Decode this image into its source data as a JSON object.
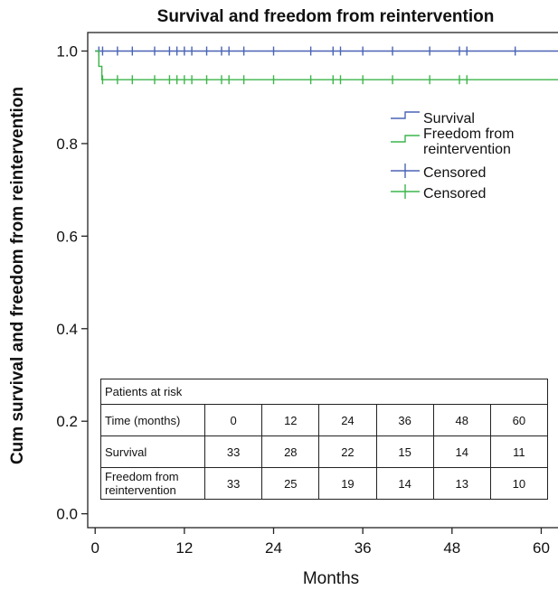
{
  "chart_data": {
    "type": "line",
    "step": true,
    "title": "Survival and freedom from reintervention",
    "xlabel": "Months",
    "ylabel": "Cum survival and freedom from reintervention",
    "xlim": [
      -1,
      62.5
    ],
    "ylim": [
      -0.03,
      1.04
    ],
    "x_ticks": [
      "0",
      "12",
      "24",
      "36",
      "48",
      "60"
    ],
    "y_ticks": [
      "0.0",
      "0.2",
      "0.4",
      "0.6",
      "0.8",
      "1.0"
    ],
    "grid": false,
    "legend_position": "top-right",
    "series": [
      {
        "name": "Survival",
        "color": "#4a63b5",
        "points": [
          [
            0,
            1.0
          ],
          [
            62.5,
            1.0
          ]
        ],
        "censored": [
          0.5,
          1,
          3,
          5,
          8,
          10,
          11,
          12,
          13,
          15,
          17,
          18,
          20,
          24,
          29,
          32,
          33,
          36,
          40,
          45,
          49,
          50,
          56.5
        ]
      },
      {
        "name": "Freedom from reintervention",
        "color": "#3cb54a",
        "points": [
          [
            0,
            1.0
          ],
          [
            0.5,
            1.0
          ],
          [
            0.5,
            0.967
          ],
          [
            0.9,
            0.967
          ],
          [
            0.9,
            0.938
          ],
          [
            62.5,
            0.938
          ]
        ],
        "censored": [
          1,
          3,
          5,
          8,
          10,
          11,
          12,
          13,
          15,
          17,
          18,
          20,
          24,
          29,
          32,
          33,
          36,
          40,
          45,
          49,
          50
        ]
      }
    ],
    "legend": [
      {
        "label": "Survival",
        "marker": "step",
        "color": "#4a63b5"
      },
      {
        "label": "Freedom from reintervention",
        "lines": [
          "Freedom from",
          "reintervention"
        ],
        "marker": "step",
        "color": "#3cb54a"
      },
      {
        "label": "Censored",
        "marker": "cross",
        "color": "#4a63b5"
      },
      {
        "label": "Censored",
        "marker": "cross",
        "color": "#3cb54a"
      }
    ]
  },
  "risk_table": {
    "title": "Patients at risk",
    "rows": [
      {
        "label": "Time (months)",
        "values": [
          "0",
          "12",
          "24",
          "36",
          "48",
          "60"
        ]
      },
      {
        "label": "Survival",
        "values": [
          "33",
          "28",
          "22",
          "15",
          "14",
          "11"
        ]
      },
      {
        "label": "Freedom from reintervention",
        "label_lines": [
          "Freedom from",
          "reintervention"
        ],
        "values": [
          "33",
          "25",
          "19",
          "14",
          "13",
          "10"
        ]
      }
    ]
  }
}
